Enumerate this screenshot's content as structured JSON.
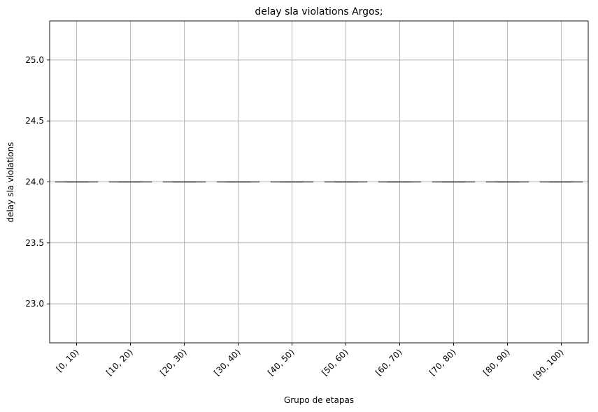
{
  "chart_data": {
    "type": "box",
    "title": "delay sla violations Argos;",
    "xlabel": "Grupo de etapas",
    "ylabel": "delay sla violations",
    "categories": [
      "[0, 10)",
      "[10, 20)",
      "[20, 30)",
      "[30, 40)",
      "[40, 50)",
      "[50, 60)",
      "[60, 70)",
      "[70, 80)",
      "[80, 90)",
      "[90, 100)"
    ],
    "values": [
      24.0,
      24.0,
      24.0,
      24.0,
      24.0,
      24.0,
      24.0,
      24.0,
      24.0,
      24.0
    ],
    "ylim": [
      22.68,
      25.32
    ],
    "yticks": [
      23.0,
      23.5,
      24.0,
      24.5,
      25.0
    ],
    "ytick_labels": [
      "23.0",
      "23.5",
      "24.0",
      "24.5",
      "25.0"
    ],
    "grid": true,
    "box_color": "#3f3f3f"
  }
}
